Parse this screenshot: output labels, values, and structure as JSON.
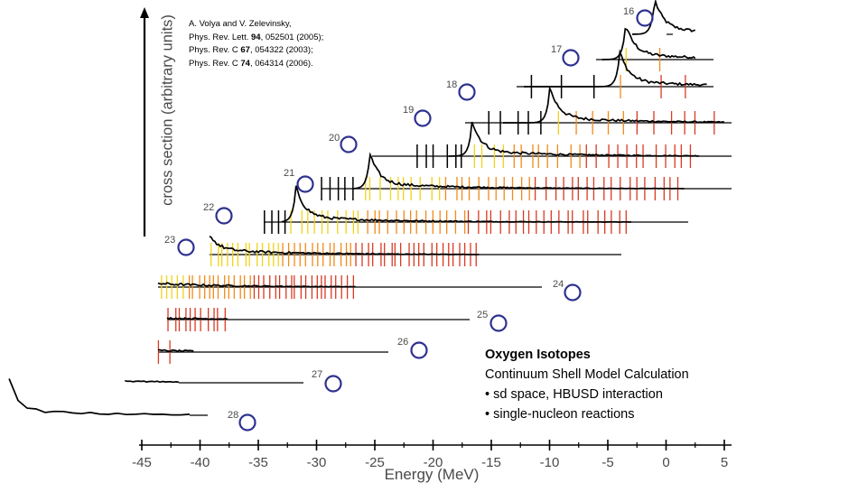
{
  "chart_data": {
    "type": "line",
    "xlabel": "Energy (MeV)",
    "ylabel": "cross section (arbitrary units)",
    "xlim": [
      -45,
      5
    ],
    "x_ticks": [
      "-45",
      "-40",
      "-35",
      "-30",
      "-25",
      "-20",
      "-15",
      "-10",
      "-5",
      "0",
      "5"
    ],
    "series_style": "waterfall, one trace per isotope; vertical marks for levels coloured black, yellow, orange, red",
    "colors": {
      "curve": "#000000",
      "axis": "#000000",
      "circle": "#2e3190",
      "level_black": "#000000",
      "level_yellow": "#f2d21a",
      "level_orange": "#f28a1a",
      "level_red": "#d93a22",
      "label_gray": "#4a4a4a"
    },
    "isotopes": [
      {
        "mass": "16",
        "threshold": 0.0,
        "peak": -1.0,
        "rise_start": -3.5,
        "end": 2.5,
        "level_span": [
          -0.2,
          2.5
        ],
        "density": 1
      },
      {
        "mass": "17",
        "threshold": -4.1,
        "peak": -3.5,
        "rise_start": -5.5,
        "end": 2.5,
        "level_span": [
          -4.1,
          2.0
        ],
        "density": 2
      },
      {
        "mass": "18",
        "threshold": -12.2,
        "peak": -4.0,
        "rise_start": -12.2,
        "end": 3.5,
        "level_span": [
          -12.0,
          3.5
        ],
        "density": 6
      },
      {
        "mass": "19",
        "threshold": -16.2,
        "peak": -10.0,
        "rise_start": -14.0,
        "end": 5.0,
        "level_span": [
          -16.0,
          5.0
        ],
        "density": 16
      },
      {
        "mass": "20",
        "threshold": -19.5,
        "peak": -14.5,
        "rise_start": -16.5,
        "end": 5.0,
        "level_span": [
          -19.5,
          5.0
        ],
        "density": 30
      },
      {
        "mass": "21",
        "threshold": -27.5,
        "peak": -22.5,
        "rise_start": -24.0,
        "end": 4.5,
        "level_span": [
          -27.5,
          4.5
        ],
        "density": 45
      },
      {
        "mass": "22",
        "threshold": -33.5,
        "peak": -27.3,
        "rise_start": -28.5,
        "end": 1.5,
        "level_span": [
          -33.5,
          1.5
        ],
        "density": 55
      },
      {
        "mass": "23",
        "threshold": -36.5,
        "peak": -33.7,
        "rise_start": -35.0,
        "end": -10.0,
        "level_span": [
          -36.5,
          -10.0
        ],
        "density": 55
      },
      {
        "mass": "24",
        "threshold": -39.5,
        "peak": -37.8,
        "rise_start": -38.2,
        "end": -17.5,
        "level_span": [
          -39.5,
          -17.5
        ],
        "density": 50
      },
      {
        "mass": "25",
        "threshold": -41.0,
        "peak": -40.6,
        "rise_start": -41.0,
        "end": -26.0,
        "level_span": [
          -40.0,
          -26.0
        ],
        "density": 30
      },
      {
        "mass": "26",
        "threshold": -40.0,
        "peak": -39.7,
        "rise_start": -40.0,
        "end": -28.0,
        "level_span": [
          -39.5,
          -29.0
        ],
        "density": 10
      },
      {
        "mass": "27",
        "threshold": -40.5,
        "peak": -40.0,
        "rise_start": -41.0,
        "end": -32.5,
        "level_span": [
          -39.0,
          -32.5
        ],
        "density": 3
      },
      {
        "mass": "28",
        "threshold": -40.5,
        "peak": -40.5,
        "rise_start": -41.0,
        "end": -40.5,
        "level_span": [
          -40.5,
          -40.5
        ],
        "density": 1
      }
    ]
  },
  "references": [
    {
      "prefix": "A. Volya and V. Zelevinsky,",
      "bold": "",
      "suffix": ""
    },
    {
      "prefix": "Phys. Rev. Lett. ",
      "bold": "94",
      "suffix": ", 052501 (2005);"
    },
    {
      "prefix": "Phys. Rev. C ",
      "bold": "67",
      "suffix": ", 054322 (2003);"
    },
    {
      "prefix": "Phys. Rev. C ",
      "bold": "74",
      "suffix": ", 064314 (2006)."
    }
  ],
  "info": {
    "title": "Oxygen Isotopes",
    "subtitle": "Continuum Shell Model Calculation",
    "bullet1": "• sd space,  HBUSD interaction",
    "bullet2": "• single-nucleon reactions"
  }
}
